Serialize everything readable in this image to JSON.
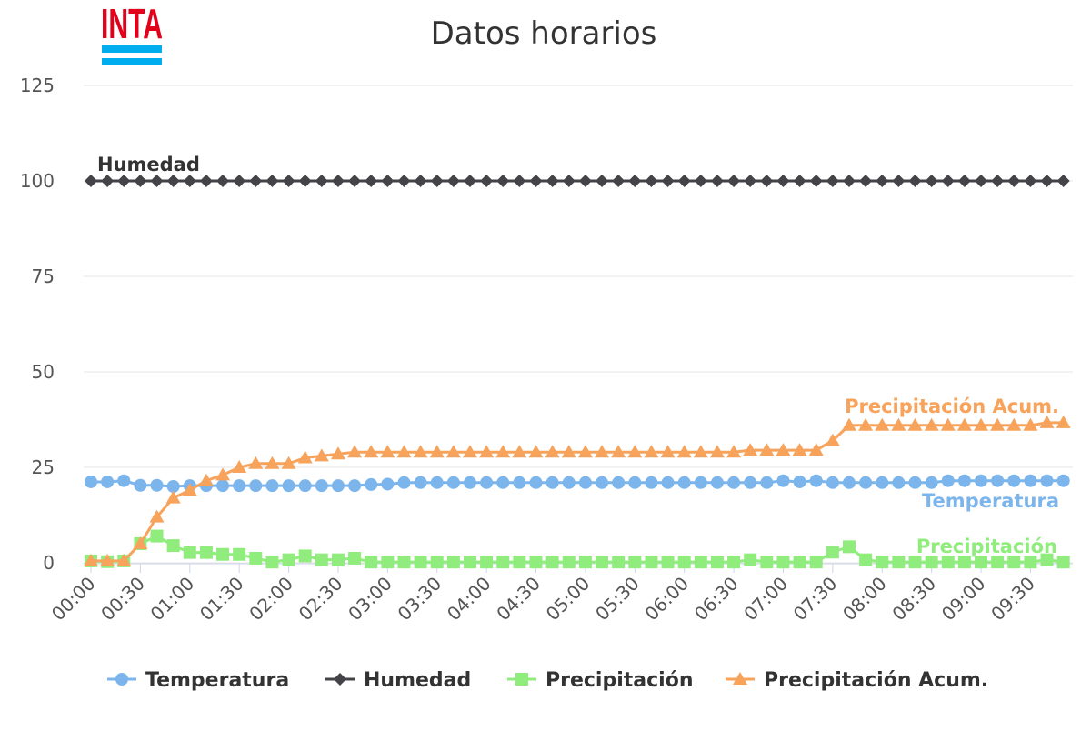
{
  "logo": "INTA",
  "chart_data": {
    "type": "line",
    "title": "Datos horarios",
    "categories": [
      "00:00",
      null,
      null,
      "00:30",
      null,
      null,
      "01:00",
      null,
      null,
      "01:30",
      null,
      null,
      "02:00",
      null,
      null,
      "02:30",
      null,
      null,
      "03:00",
      null,
      null,
      "03:30",
      null,
      null,
      "04:00",
      null,
      null,
      "04:30",
      null,
      null,
      "05:00",
      null,
      null,
      "05:30",
      null,
      null,
      "06:00",
      null,
      null,
      "06:30",
      null,
      null,
      "07:00",
      null,
      null,
      "07:30",
      null,
      null,
      "08:00",
      null,
      null,
      "08:30",
      null,
      null,
      "09:00",
      null,
      null,
      "09:30",
      null,
      null
    ],
    "series": [
      {
        "name": "Temperatura",
        "color": "#7cb5ec",
        "marker": "circle",
        "values": [
          21.2,
          21.2,
          21.5,
          20.3,
          20.3,
          20,
          20.2,
          20.2,
          20.2,
          20.2,
          20.2,
          20.2,
          20.2,
          20.2,
          20.2,
          20.2,
          20.2,
          20.5,
          20.6,
          21,
          21,
          21,
          21,
          21,
          21,
          21,
          21,
          21,
          21,
          21,
          21,
          21,
          21,
          21,
          21,
          21,
          21,
          21,
          21,
          21,
          21,
          21,
          21.5,
          21.2,
          21.5,
          21,
          21,
          21,
          21,
          21,
          21,
          21,
          21.5,
          21.5,
          21.5,
          21.5,
          21.5,
          21.5,
          21.5,
          21.5
        ]
      },
      {
        "name": "Humedad",
        "color": "#434348",
        "marker": "diamond",
        "values": [
          100,
          100,
          100,
          100,
          100,
          100,
          100,
          100,
          100,
          100,
          100,
          100,
          100,
          100,
          100,
          100,
          100,
          100,
          100,
          100,
          100,
          100,
          100,
          100,
          100,
          100,
          100,
          100,
          100,
          100,
          100,
          100,
          100,
          100,
          100,
          100,
          100,
          100,
          100,
          100,
          100,
          100,
          100,
          100,
          100,
          100,
          100,
          100,
          100,
          100,
          100,
          100,
          100,
          100,
          100,
          100,
          100,
          100,
          100,
          100
        ]
      },
      {
        "name": "Precipitación",
        "color": "#90ed7d",
        "marker": "square",
        "values": [
          0.5,
          0.3,
          0.5,
          5,
          7,
          4.5,
          2.7,
          2.7,
          2.2,
          2.2,
          1.2,
          0.2,
          0.8,
          1.8,
          0.8,
          0.8,
          1.2,
          0.2,
          0.2,
          0.2,
          0.2,
          0.2,
          0.2,
          0.2,
          0.2,
          0.2,
          0.2,
          0.2,
          0.2,
          0.2,
          0.2,
          0.2,
          0.2,
          0.2,
          0.2,
          0.2,
          0.2,
          0.2,
          0.2,
          0.2,
          0.8,
          0.2,
          0.2,
          0.2,
          0.2,
          2.8,
          4.2,
          0.8,
          0.2,
          0.2,
          0.2,
          0.2,
          0.2,
          0.2,
          0.2,
          0.2,
          0.2,
          0.2,
          0.8,
          0.2
        ]
      },
      {
        "name": "Precipitación Acum.",
        "color": "#f7a35c",
        "marker": "triangle",
        "values": [
          0.5,
          0.5,
          0.5,
          5,
          12,
          17,
          19,
          21.5,
          23,
          25,
          26,
          26,
          26,
          27.5,
          28,
          28.5,
          29,
          29,
          29,
          29,
          29,
          29,
          29,
          29,
          29,
          29,
          29,
          29,
          29,
          29,
          29,
          29,
          29,
          29,
          29,
          29,
          29,
          29,
          29,
          29,
          29.5,
          29.5,
          29.5,
          29.5,
          29.5,
          32,
          36,
          36,
          36,
          36,
          36,
          36,
          36,
          36,
          36,
          36,
          36,
          36,
          36.7,
          36.7
        ]
      }
    ],
    "ylim": [
      0,
      125
    ],
    "yticks": [
      0,
      25,
      50,
      75,
      100,
      125
    ],
    "grid": true,
    "legend": "bottom"
  }
}
